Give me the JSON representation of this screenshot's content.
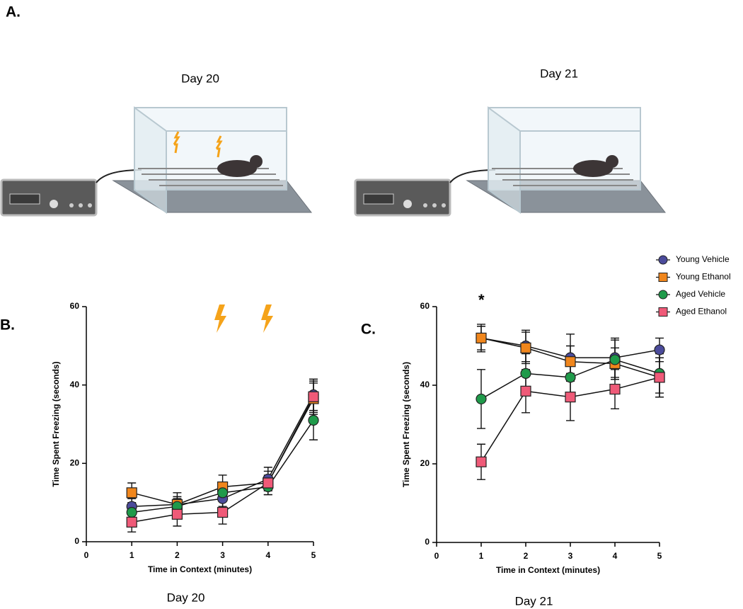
{
  "panels": {
    "a": "A.",
    "b": "B.",
    "c": "C."
  },
  "illustration": {
    "labels": [
      "Day 20",
      "Day 21"
    ]
  },
  "chart_data": [
    {
      "type": "line",
      "caption": "Day 20",
      "x_label": "Time in Context (minutes)",
      "y_label": "Time Spent Freezing (seconds)",
      "xlim": [
        0,
        5
      ],
      "xticks": [
        0,
        1,
        2,
        3,
        4,
        5
      ],
      "ylim": [
        0,
        60
      ],
      "yticks": [
        0,
        20,
        40,
        60
      ],
      "x": [
        1,
        2,
        3,
        4,
        5
      ],
      "series": [
        {
          "color": "#4b4b9b",
          "marker": "circle",
          "values": [
            9,
            9.5,
            11,
            16,
            37.5
          ],
          "errors": [
            2,
            3,
            2,
            3,
            4
          ]
        },
        {
          "color": "#f0861c",
          "marker": "square",
          "values": [
            12.5,
            9.5,
            14,
            15,
            36.5
          ],
          "errors": [
            2.5,
            2,
            3,
            2,
            4
          ]
        },
        {
          "color": "#1f9a4a",
          "marker": "circle",
          "values": [
            7.5,
            9,
            12.5,
            14,
            31
          ],
          "errors": [
            2,
            2,
            2,
            2,
            5
          ]
        },
        {
          "color": "#ef5a78",
          "marker": "square",
          "values": [
            5,
            7,
            7.5,
            15,
            37
          ],
          "errors": [
            2.5,
            3,
            3,
            3,
            4
          ]
        }
      ]
    },
    {
      "type": "line",
      "caption": "Day 21",
      "x_label": "Time in Context (minutes)",
      "y_label": "Time Spent Freezing (seconds)",
      "annotation": "*",
      "xlim": [
        0,
        5
      ],
      "xticks": [
        0,
        1,
        2,
        3,
        4,
        5
      ],
      "ylim": [
        0,
        60
      ],
      "yticks": [
        0,
        20,
        40,
        60
      ],
      "x": [
        1,
        2,
        3,
        4,
        5
      ],
      "legend": "upper right",
      "series": [
        {
          "name": "Young Vehicle",
          "color": "#4b4b9b",
          "marker": "circle",
          "values": [
            52,
            50,
            47,
            47,
            49
          ],
          "errors": [
            3.5,
            4,
            6,
            5,
            3
          ]
        },
        {
          "name": "Young Ethanol",
          "color": "#f0861c",
          "marker": "square",
          "values": [
            52,
            49.5,
            46,
            45.5,
            42
          ],
          "errors": [
            3,
            4,
            4,
            4,
            5
          ]
        },
        {
          "name": "Aged Vehicle",
          "color": "#1f9a4a",
          "marker": "circle",
          "values": [
            36.5,
            43,
            42,
            46.5,
            43
          ],
          "errors": [
            7.5,
            5,
            4,
            5,
            5
          ]
        },
        {
          "name": "Aged Ethanol",
          "color": "#ef5a78",
          "marker": "square",
          "values": [
            20.5,
            38.5,
            37,
            39,
            42
          ],
          "errors": [
            4.5,
            5.5,
            6,
            5,
            5
          ]
        }
      ]
    }
  ]
}
